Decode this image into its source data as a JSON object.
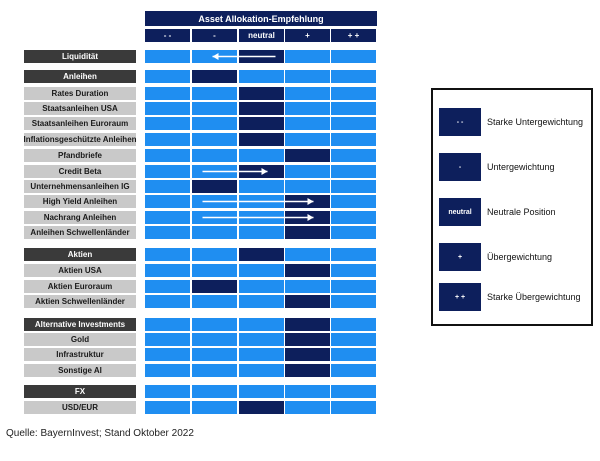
{
  "chart_data": {
    "type": "table",
    "title": "Asset Allokation-Empfehlung",
    "columns": [
      "- -",
      "-",
      "neutral",
      "+",
      "+ +"
    ],
    "rows": [
      {
        "label": "Liquidität",
        "kind": "category",
        "position": 2,
        "arrow_to": 1
      },
      {
        "label": "Anleihen",
        "kind": "category",
        "position": 1
      },
      {
        "label": "Rates Duration",
        "kind": "sub",
        "position": 2
      },
      {
        "label": "Staatsanleihen USA",
        "kind": "sub",
        "position": 2
      },
      {
        "label": "Staatsanleihen Euroraum",
        "kind": "sub",
        "position": 2
      },
      {
        "label": "Inflationsgeschützte Anleihen",
        "kind": "sub",
        "position": 2
      },
      {
        "label": "Pfandbriefe",
        "kind": "sub",
        "position": 3
      },
      {
        "label": "Credit Beta",
        "kind": "sub",
        "position": 2,
        "arrow_from": 1
      },
      {
        "label": "Unternehmensanleihen IG",
        "kind": "sub",
        "position": 1
      },
      {
        "label": "High Yield Anleihen",
        "kind": "sub",
        "position": 3,
        "arrow_from": 1
      },
      {
        "label": "Nachrang Anleihen",
        "kind": "sub",
        "position": 3,
        "arrow_from": 1
      },
      {
        "label": "Anleihen Schwellenländer",
        "kind": "sub",
        "position": 3
      },
      {
        "label": "Aktien",
        "kind": "category",
        "position": 2
      },
      {
        "label": "Aktien USA",
        "kind": "sub",
        "position": 3
      },
      {
        "label": "Aktien Euroraum",
        "kind": "sub",
        "position": 1
      },
      {
        "label": "Aktien Schwellenländer",
        "kind": "sub",
        "position": 3
      },
      {
        "label": "Alternative Investments",
        "kind": "category",
        "position": 3
      },
      {
        "label": "Gold",
        "kind": "sub",
        "position": 3
      },
      {
        "label": "Infrastruktur",
        "kind": "sub",
        "position": 3
      },
      {
        "label": "Sonstige AI",
        "kind": "sub",
        "position": 3
      },
      {
        "label": "FX",
        "kind": "category",
        "position": null
      },
      {
        "label": "USD/EUR",
        "kind": "sub",
        "position": 2
      }
    ]
  },
  "legend": [
    {
      "symbol": "- -",
      "label": "Starke Untergewichtung"
    },
    {
      "symbol": "-",
      "label": "Untergewichtung"
    },
    {
      "symbol": "neutral",
      "label": "Neutrale Position"
    },
    {
      "symbol": "+",
      "label": "Übergewichtung"
    },
    {
      "symbol": "+ +",
      "label": "Starke Übergewichtung"
    }
  ],
  "source": "Quelle: BayernInvest; Stand Oktober 2022",
  "colors": {
    "dark_navy": "#0d1f5c",
    "cell_blue": "#1f8ef1",
    "category_gray": "#3a3a3a",
    "sub_gray": "#c9c9c9"
  }
}
